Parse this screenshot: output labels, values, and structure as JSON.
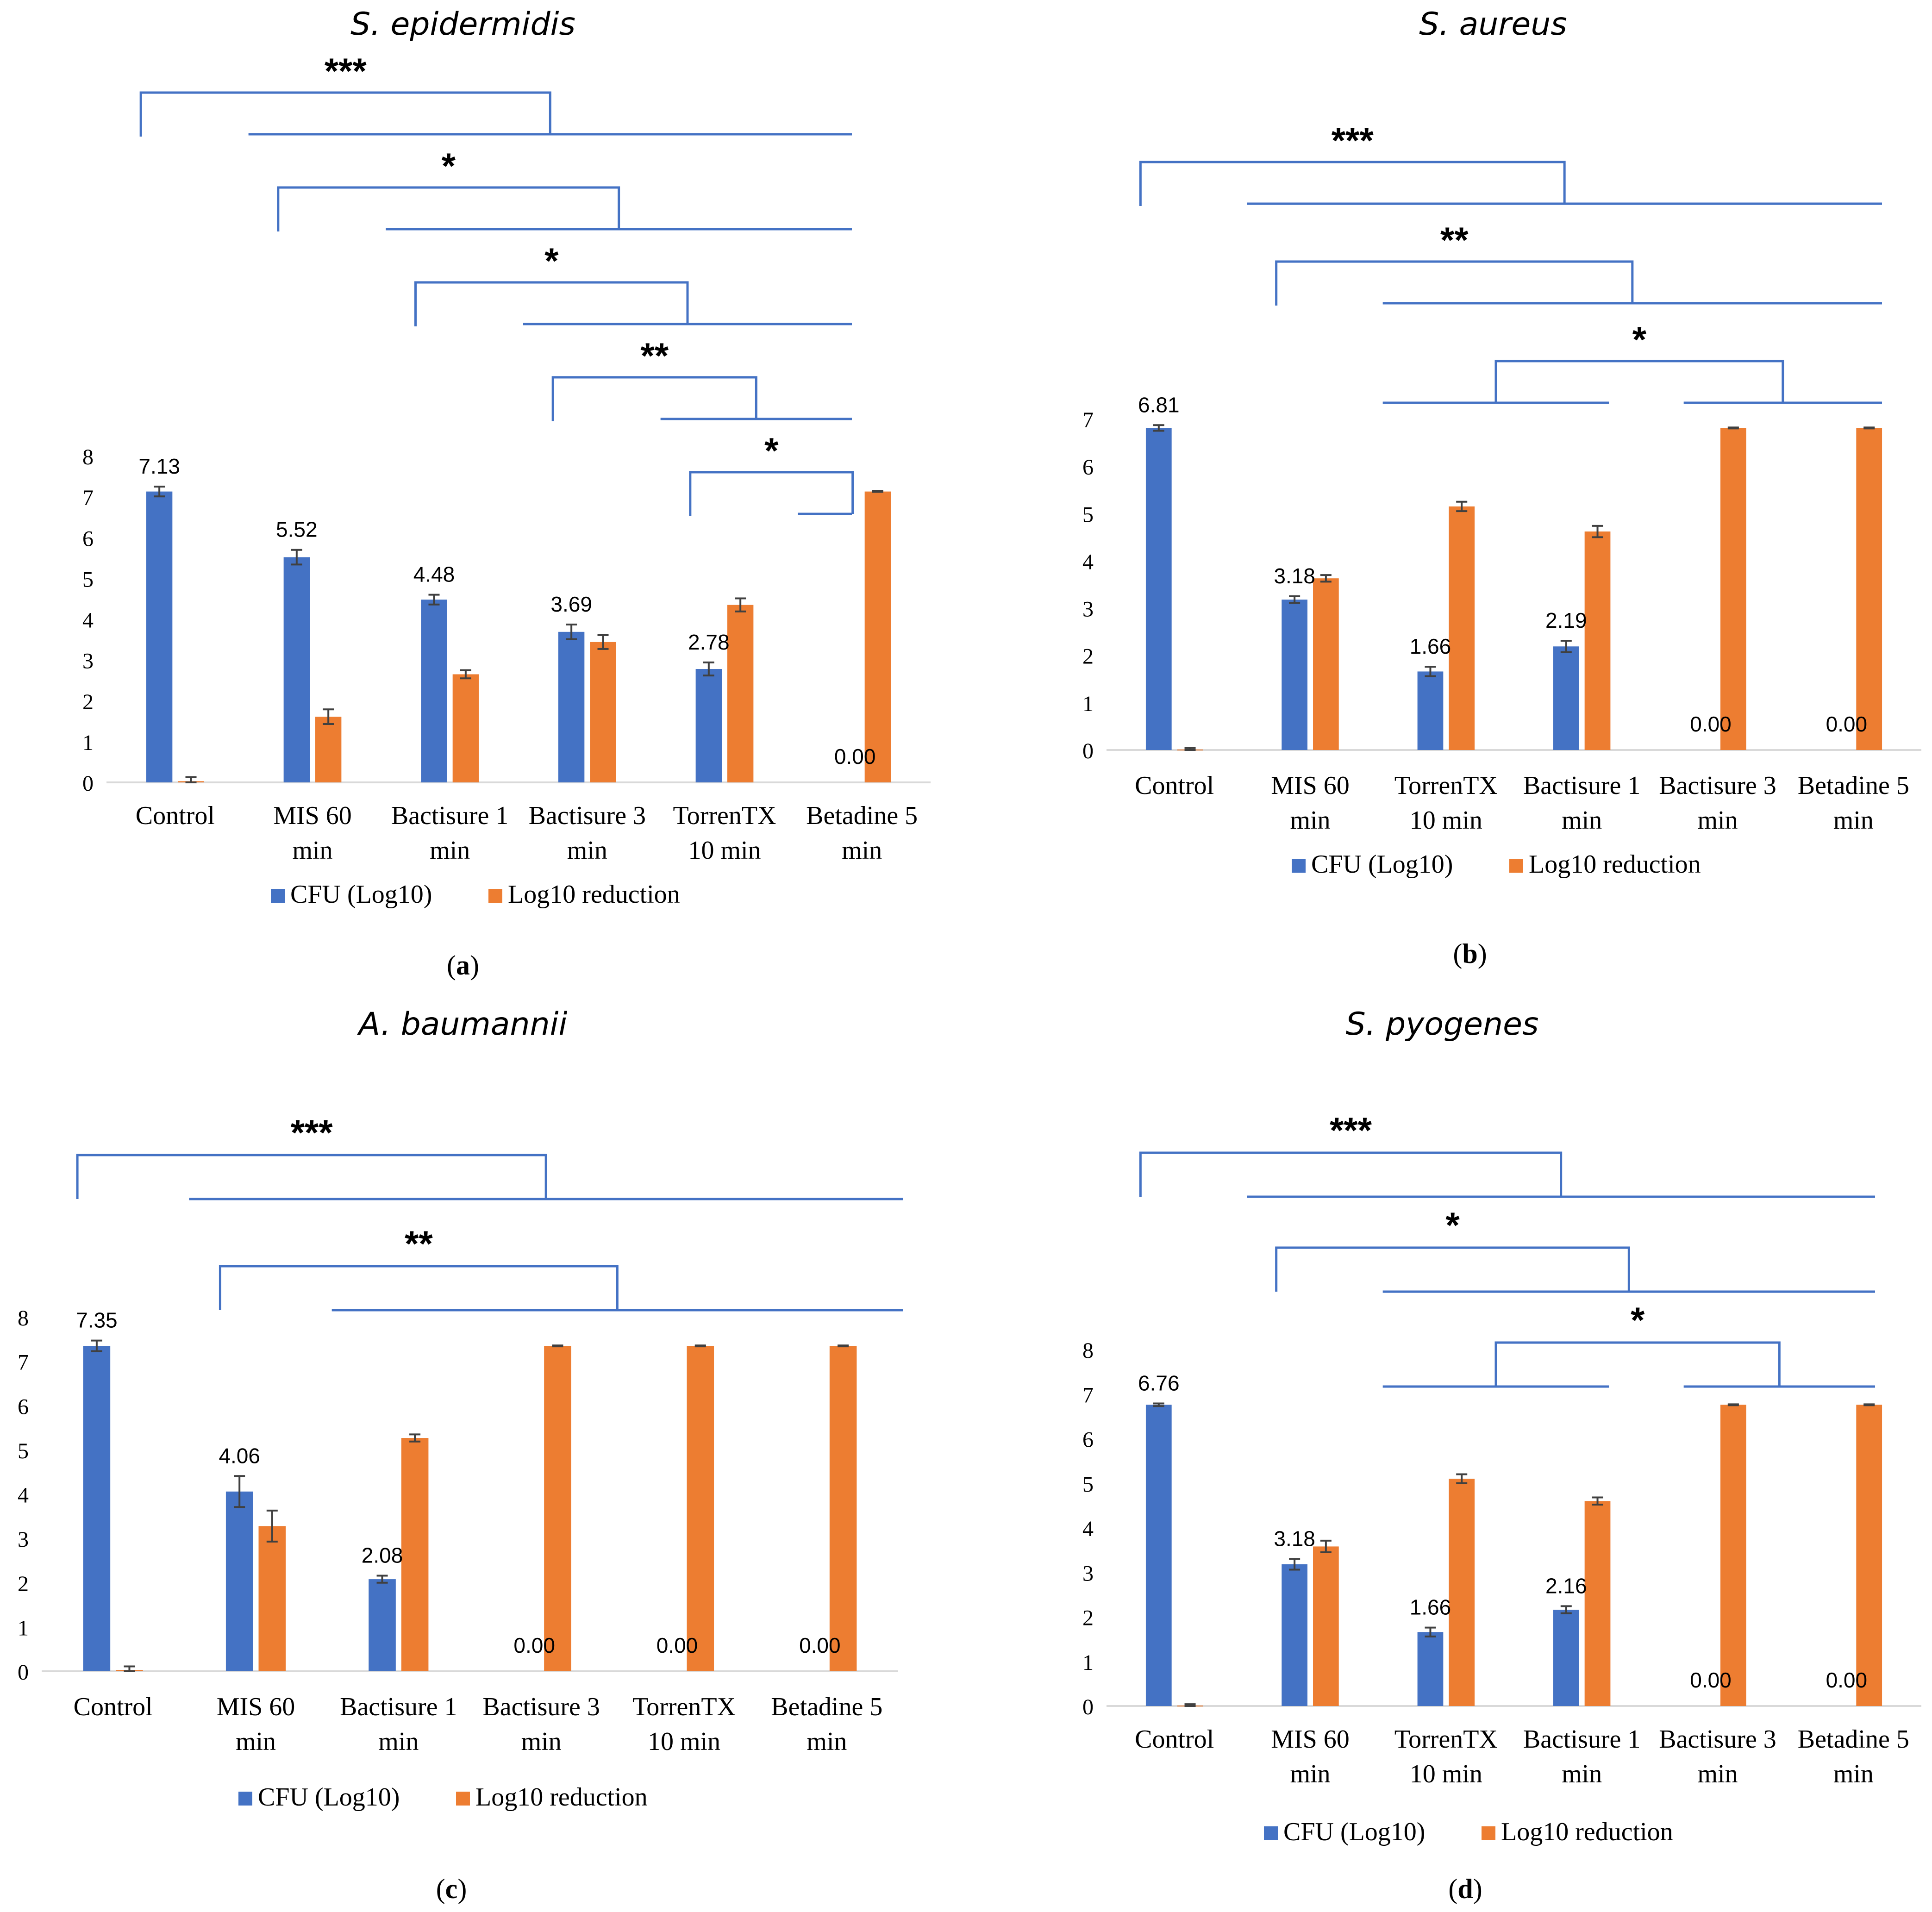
{
  "colors": {
    "cfu": "#4472C4",
    "reduction": "#ED7D31",
    "bracket": "#4472C4",
    "axis": "#D9D9D9",
    "text": "#000000",
    "errorbar": "#404040"
  },
  "legend_labels": {
    "cfu": "CFU (Log10)",
    "reduction": "Log10 reduction"
  },
  "chart_data": [
    {
      "type": "bar",
      "panel_label": "a",
      "title": "S. epidermidis",
      "categories": [
        [
          "Control"
        ],
        [
          "MIS 60",
          "min"
        ],
        [
          "Bactisure 1",
          "min"
        ],
        [
          "Bactisure 3",
          "min"
        ],
        [
          "TorrenTX",
          "10 min"
        ],
        [
          "Betadine 5",
          "min"
        ]
      ],
      "series": [
        {
          "name": "CFU (Log10)",
          "values": [
            7.13,
            5.52,
            4.48,
            3.69,
            2.78,
            0
          ],
          "errors": [
            0.12,
            0.18,
            0.12,
            0.18,
            0.16,
            0
          ],
          "labels": [
            "7.13",
            "5.52",
            "4.48",
            "3.69",
            "2.78",
            "0.00"
          ]
        },
        {
          "name": "Log10 reduction",
          "values": [
            0.03,
            1.61,
            2.65,
            3.44,
            4.35,
            7.13
          ],
          "errors": [
            0.1,
            0.18,
            0.1,
            0.17,
            0.16,
            0.01
          ]
        }
      ],
      "ylim": [
        0,
        8
      ],
      "yticks": [
        "0",
        "1",
        "2",
        "3",
        "4",
        "5",
        "6",
        "7",
        "8"
      ],
      "brackets": [
        {
          "from": 0,
          "to_range": [
            1,
            5
          ],
          "label": "***"
        },
        {
          "from": 1,
          "to_range": [
            2,
            5
          ],
          "label": "*"
        },
        {
          "from": 2,
          "to_range": [
            3,
            5
          ],
          "label": "*"
        },
        {
          "from": 3,
          "to_range": [
            4,
            5
          ],
          "label": "**"
        },
        {
          "from": 4,
          "to_range": [
            5,
            5
          ],
          "label": "*"
        }
      ]
    },
    {
      "type": "bar",
      "panel_label": "b",
      "title": "S. aureus",
      "categories": [
        [
          "Control"
        ],
        [
          "MIS 60",
          "min"
        ],
        [
          "TorrenTX",
          "10 min"
        ],
        [
          "Bactisure 1",
          "min"
        ],
        [
          "Bactisure 3",
          "min"
        ],
        [
          "Betadine 5",
          "min"
        ]
      ],
      "series": [
        {
          "name": "CFU (Log10)",
          "values": [
            6.81,
            3.18,
            1.66,
            2.19,
            0,
            0
          ],
          "errors": [
            0.06,
            0.07,
            0.1,
            0.12,
            0,
            0
          ],
          "labels": [
            "6.81",
            "3.18",
            "1.66",
            "2.19",
            "0.00",
            "0.00"
          ]
        },
        {
          "name": "Log10 reduction",
          "values": [
            0.01,
            3.63,
            5.15,
            4.62,
            6.81,
            6.81
          ],
          "errors": [
            0.03,
            0.07,
            0.1,
            0.12,
            0.01,
            0.01
          ]
        }
      ],
      "ylim": [
        0,
        7
      ],
      "yticks": [
        "0",
        "1",
        "2",
        "3",
        "4",
        "5",
        "6",
        "7"
      ],
      "brackets": [
        {
          "from": 0,
          "to_range": [
            1,
            5
          ],
          "label": "***"
        },
        {
          "from": 1,
          "to_range": [
            2,
            5
          ],
          "label": "**"
        },
        {
          "from_range": [
            2,
            3
          ],
          "to_range": [
            4,
            5
          ],
          "label": "*"
        }
      ]
    },
    {
      "type": "bar",
      "panel_label": "c",
      "title": "A. baumannii",
      "categories": [
        [
          "Control"
        ],
        [
          "MIS 60",
          "min"
        ],
        [
          "Bactisure 1",
          "min"
        ],
        [
          "Bactisure 3",
          "min"
        ],
        [
          "TorrenTX",
          "10 min"
        ],
        [
          "Betadine 5",
          "min"
        ]
      ],
      "series": [
        {
          "name": "CFU (Log10)",
          "values": [
            7.35,
            4.06,
            2.08,
            0,
            0,
            0
          ],
          "errors": [
            0.12,
            0.35,
            0.08,
            0,
            0,
            0
          ],
          "labels": [
            "7.35",
            "4.06",
            "2.08",
            "0.00",
            "0.00",
            "0.00"
          ]
        },
        {
          "name": "Log10 reduction",
          "values": [
            0.03,
            3.28,
            5.27,
            7.35,
            7.35,
            7.35
          ],
          "errors": [
            0.08,
            0.35,
            0.08,
            0.01,
            0.01,
            0.01
          ]
        }
      ],
      "ylim": [
        0,
        8
      ],
      "yticks": [
        "0",
        "1",
        "2",
        "3",
        "4",
        "5",
        "6",
        "7",
        "8"
      ],
      "brackets": [
        {
          "from": 0,
          "to_range": [
            1,
            5
          ],
          "label": "***"
        },
        {
          "from": 1,
          "to_range": [
            2,
            5
          ],
          "label": "**"
        }
      ]
    },
    {
      "type": "bar",
      "panel_label": "d",
      "title": "S. pyogenes",
      "categories": [
        [
          "Control"
        ],
        [
          "MIS 60",
          "min"
        ],
        [
          "TorrenTX",
          "10 min"
        ],
        [
          "Bactisure 1",
          "min"
        ],
        [
          "Bactisure 3",
          "min"
        ],
        [
          "Betadine 5",
          "min"
        ]
      ],
      "series": [
        {
          "name": "CFU (Log10)",
          "values": [
            6.76,
            3.18,
            1.66,
            2.16,
            0,
            0
          ],
          "errors": [
            0.03,
            0.12,
            0.1,
            0.08,
            0,
            0
          ],
          "labels": [
            "6.76",
            "3.18",
            "1.66",
            "2.16",
            "0.00",
            "0.00"
          ]
        },
        {
          "name": "Log10 reduction",
          "values": [
            0.01,
            3.58,
            5.1,
            4.6,
            6.76,
            6.76
          ],
          "errors": [
            0.03,
            0.13,
            0.1,
            0.08,
            0.01,
            0.01
          ]
        }
      ],
      "ylim": [
        0,
        8
      ],
      "yticks": [
        "0",
        "1",
        "2",
        "3",
        "4",
        "5",
        "6",
        "7",
        "8"
      ],
      "brackets": [
        {
          "from": 0,
          "to_range": [
            1,
            5
          ],
          "label": "***"
        },
        {
          "from": 1,
          "to_range": [
            2,
            5
          ],
          "label": "*"
        },
        {
          "from_range": [
            2,
            3
          ],
          "to_range": [
            4,
            5
          ],
          "label": "*"
        }
      ]
    }
  ]
}
